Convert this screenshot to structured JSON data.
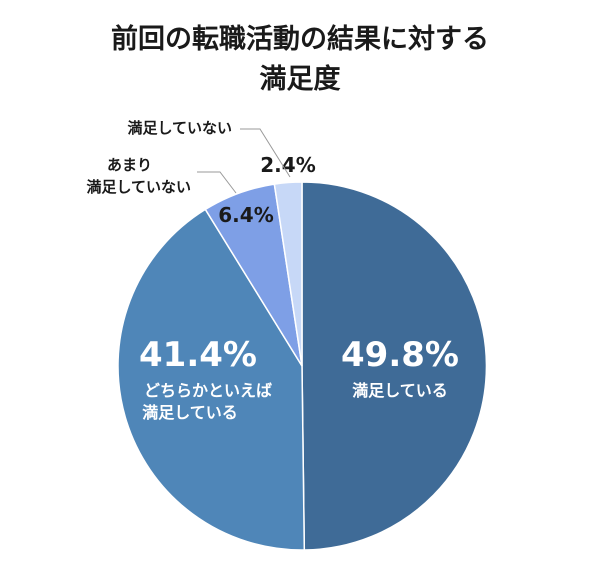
{
  "chart_data": {
    "type": "pie",
    "title_lines": [
      "前回の転職活動の結果に対する",
      "満足度"
    ],
    "slices": [
      {
        "label_lines": [
          "満足している"
        ],
        "value": 49.8,
        "value_label": "49.8%",
        "color": "#3f6b97"
      },
      {
        "label_lines": [
          "どちらかといえば",
          "満足している"
        ],
        "value": 41.4,
        "value_label": "41.4%",
        "color": "#4f86b8"
      },
      {
        "label_lines": [
          "あまり",
          "満足していない"
        ],
        "value": 6.4,
        "value_label": "6.4%",
        "color": "#7e9fe6"
      },
      {
        "label_lines": [
          "満足していない"
        ],
        "value": 2.4,
        "value_label": "2.4%",
        "color": "#c7d8f7"
      }
    ]
  }
}
